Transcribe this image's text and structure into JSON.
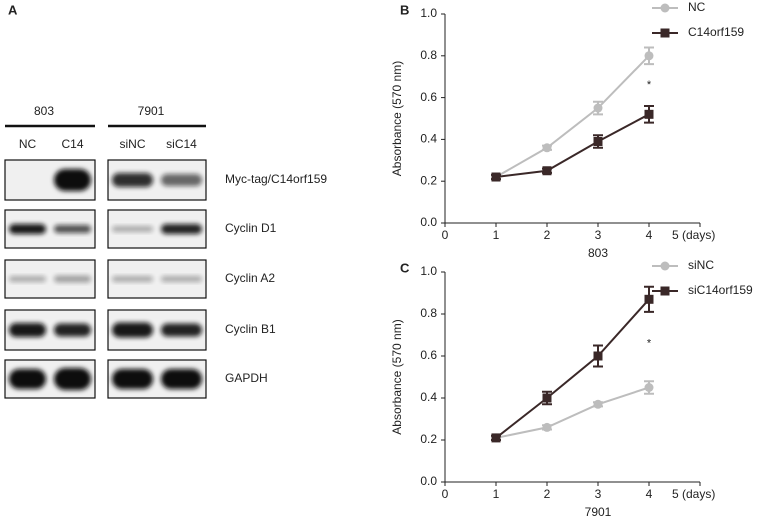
{
  "blot": {
    "panel": "A",
    "groups": [
      {
        "name": "803",
        "lanes": [
          "NC",
          "C14"
        ]
      },
      {
        "name": "7901",
        "lanes": [
          "siNC",
          "siC14"
        ]
      }
    ],
    "proteins": [
      "Myc-tag/C14orf159",
      "Cyclin D1",
      "Cyclin A2",
      "Cyclin B1",
      "GAPDH"
    ]
  },
  "chart_data": [
    {
      "type": "line",
      "panel": "B",
      "ylabel": "Absorbance (570 nm)",
      "xlabel": "803",
      "annotation": "*",
      "x": [
        1,
        2,
        3,
        4
      ],
      "series": [
        {
          "name": "NC",
          "color": "#bdbdbd",
          "marker": "circle",
          "values": [
            0.22,
            0.36,
            0.55,
            0.8
          ],
          "errors": [
            0.01,
            0.01,
            0.03,
            0.04
          ]
        },
        {
          "name": "C14orf159",
          "color": "#3a2828",
          "marker": "square",
          "values": [
            0.22,
            0.25,
            0.39,
            0.52
          ],
          "errors": [
            0.01,
            0.01,
            0.03,
            0.04
          ]
        }
      ],
      "xlim": [
        0,
        5
      ],
      "xticks": [
        0,
        1,
        2,
        3,
        4,
        {
          "value": 5,
          "label": "5 (days)"
        }
      ],
      "ylim": [
        0,
        1
      ],
      "yticks": [
        {
          "value": 0,
          "label": "0.0"
        },
        0.2,
        0.4,
        0.6,
        0.8,
        {
          "value": 1,
          "label": "1.0"
        }
      ],
      "legend": "upper right"
    },
    {
      "type": "line",
      "panel": "C",
      "ylabel": "Absorbance (570 nm)",
      "xlabel": "7901",
      "annotation": "*",
      "x": [
        1,
        2,
        3,
        4
      ],
      "series": [
        {
          "name": "siNC",
          "color": "#bdbdbd",
          "marker": "circle",
          "values": [
            0.21,
            0.26,
            0.37,
            0.45
          ],
          "errors": [
            0.01,
            0.01,
            0.01,
            0.03
          ]
        },
        {
          "name": "siC14orf159",
          "color": "#3a2828",
          "marker": "square",
          "values": [
            0.21,
            0.4,
            0.6,
            0.87
          ],
          "errors": [
            0.01,
            0.03,
            0.05,
            0.06
          ]
        }
      ],
      "xlim": [
        0,
        5
      ],
      "xticks": [
        0,
        1,
        2,
        3,
        4,
        {
          "value": 5,
          "label": "5 (days)"
        }
      ],
      "ylim": [
        0,
        1
      ],
      "yticks": [
        {
          "value": 0,
          "label": "0.0"
        },
        0.2,
        0.4,
        0.6,
        0.8,
        {
          "value": 1,
          "label": "1.0"
        }
      ],
      "legend": "upper right"
    }
  ]
}
